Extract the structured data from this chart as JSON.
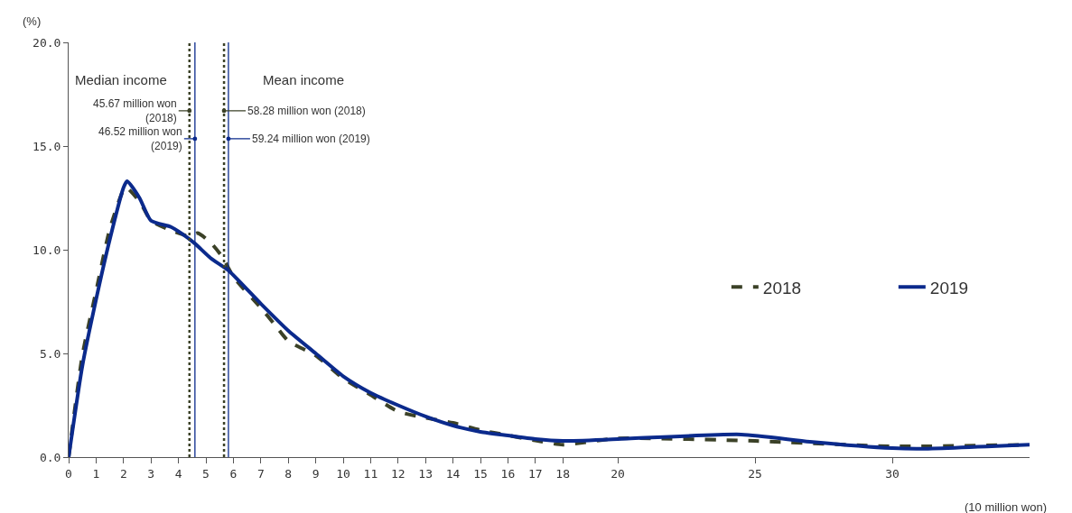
{
  "chart_data": {
    "type": "line",
    "xlabel": "(10 million won)",
    "ylabel": "(%)",
    "xlim": [
      0,
      35
    ],
    "xticks": [
      0,
      1,
      2,
      3,
      4,
      5,
      6,
      7,
      8,
      9,
      10,
      11,
      12,
      13,
      14,
      15,
      16,
      17,
      18,
      20,
      25,
      30
    ],
    "ylim": [
      0,
      20
    ],
    "yticks": [
      {
        "value": 0,
        "label": "0.0"
      },
      {
        "value": 5,
        "label": "5.0"
      },
      {
        "value": 10,
        "label": "10.0"
      },
      {
        "value": 15,
        "label": "15.0"
      },
      {
        "value": 20,
        "label": "20.0"
      }
    ],
    "grid": false,
    "legend": "right",
    "marker": "none",
    "series": [
      {
        "name": "2018",
        "color": "#3b4127",
        "line_style": "dashed",
        "x": [
          0,
          0.5,
          1,
          1.5,
          2,
          2.1,
          2.6,
          3,
          3.6,
          4.4,
          4.7,
          5.2,
          5.6,
          6,
          7,
          7.5,
          8,
          9,
          10,
          11,
          12,
          13,
          14,
          15,
          16,
          17,
          18,
          20,
          25,
          30,
          35
        ],
        "values": [
          0,
          4.9,
          8.0,
          11.0,
          12.9,
          13.0,
          12.3,
          11.4,
          11.0,
          10.65,
          10.8,
          10.3,
          9.65,
          8.7,
          7.2,
          6.4,
          5.6,
          4.9,
          3.8,
          3.0,
          2.2,
          1.9,
          1.65,
          1.3,
          1.05,
          0.8,
          0.6,
          0.9,
          0.78,
          0.52,
          0.6
        ]
      },
      {
        "name": "2019",
        "color": "#0b2a8c",
        "line_style": "solid",
        "x": [
          0,
          0.5,
          1,
          1.5,
          2,
          2.13,
          2.58,
          3,
          3.73,
          4.1,
          4.6,
          5.17,
          5.82,
          7,
          8,
          9,
          10,
          11,
          12,
          13,
          14,
          15,
          16,
          17,
          18,
          20,
          24.5,
          27,
          30,
          31,
          35
        ],
        "values": [
          0,
          4.4,
          7.6,
          10.5,
          13.0,
          13.3,
          12.5,
          11.4,
          11.1,
          10.8,
          10.3,
          9.6,
          9.0,
          7.4,
          6.1,
          5.0,
          3.9,
          3.1,
          2.5,
          1.96,
          1.52,
          1.22,
          1.04,
          0.87,
          0.78,
          0.87,
          1.09,
          0.74,
          0.43,
          0.4,
          0.6
        ]
      }
    ],
    "ref_lines": [
      {
        "axis": "x",
        "value": 4.4,
        "color": "#3b4127",
        "line_style": "dotted"
      },
      {
        "axis": "x",
        "value": 4.6,
        "color": "#0b2a8c",
        "line_style": "solid"
      },
      {
        "axis": "x",
        "value": 5.66,
        "color": "#3b4127",
        "line_style": "dotted"
      },
      {
        "axis": "x",
        "value": 5.82,
        "color": "#0b2a8c",
        "line_style": "solid"
      }
    ],
    "annotations": [
      "Median income",
      "Mean income",
      {
        "text": "45.67 million won (2018)",
        "x": 4.4,
        "y": 16.7
      },
      {
        "text": "46.52 million won (2019)",
        "x": 4.6,
        "y": 15.35
      },
      {
        "text": "58.28 million won (2018)",
        "x": 5.66,
        "y": 16.7
      },
      {
        "text": "59.24 million won (2019)",
        "x": 5.82,
        "y": 15.35
      }
    ]
  }
}
